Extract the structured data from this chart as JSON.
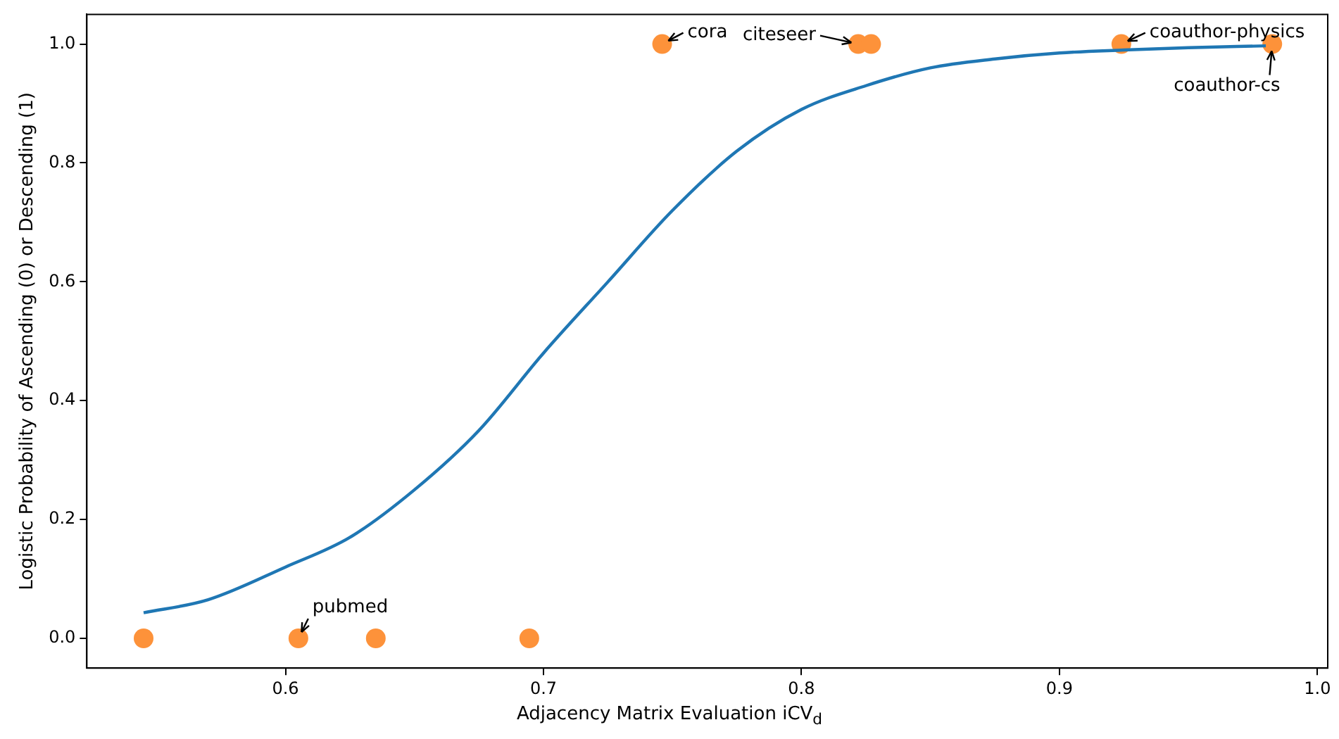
{
  "chart_data": {
    "type": "line",
    "xlabel": "Adjacency Matrix Evaluation iCV$_{d}$",
    "ylabel": "Logistic Probability of Ascending (0) or Descending (1)",
    "xlim": [
      0.523,
      1.004
    ],
    "xticks": [
      {
        "value": 0.6,
        "label": "0.6"
      },
      {
        "value": 0.7,
        "label": "0.7"
      },
      {
        "value": 0.8,
        "label": "0.8"
      },
      {
        "value": 0.9,
        "label": "0.9"
      },
      {
        "value": 1.0,
        "label": "1.0"
      }
    ],
    "ylim": [
      -0.05,
      1.05
    ],
    "yticks": [
      {
        "value": 0,
        "label": "0.0"
      },
      {
        "value": 0.2,
        "label": "0.2"
      },
      {
        "value": 0.4,
        "label": "0.4"
      },
      {
        "value": 0.6,
        "label": "0.6"
      },
      {
        "value": 0.8,
        "label": "0.8"
      },
      {
        "value": 1.0,
        "label": "1.0"
      }
    ],
    "grid": false,
    "legend": false,
    "series": [
      {
        "type": "line",
        "color": "#1f77b4",
        "marker": "none",
        "x": [
          0.545,
          0.57,
          0.6,
          0.625,
          0.65,
          0.675,
          0.7,
          0.725,
          0.75,
          0.775,
          0.8,
          0.825,
          0.85,
          0.875,
          0.9,
          0.925,
          0.95,
          0.98
        ],
        "values": [
          0.043,
          0.065,
          0.12,
          0.17,
          0.25,
          0.35,
          0.48,
          0.6,
          0.72,
          0.82,
          0.89,
          0.93,
          0.96,
          0.975,
          0.985,
          0.99,
          0.994,
          0.997
        ]
      },
      {
        "type": "scatter",
        "color": "#fd923a",
        "marker": "circle",
        "x": [
          0.545,
          0.605,
          0.635,
          0.6945,
          0.746,
          0.822,
          0.827,
          0.924,
          0.9825
        ],
        "values": [
          0,
          0,
          0,
          0,
          1,
          1,
          1,
          1,
          1
        ]
      }
    ],
    "annotations": [
      {
        "text": "pubmed",
        "x": 0.605,
        "y": 0
      },
      {
        "text": "cora",
        "x": 0.746,
        "y": 1
      },
      {
        "text": "citeseer",
        "x": 0.822,
        "y": 1
      },
      {
        "text": "coauthor-physics",
        "x": 0.924,
        "y": 1
      },
      {
        "text": "coauthor-cs",
        "x": 0.9825,
        "y": 1
      }
    ]
  }
}
